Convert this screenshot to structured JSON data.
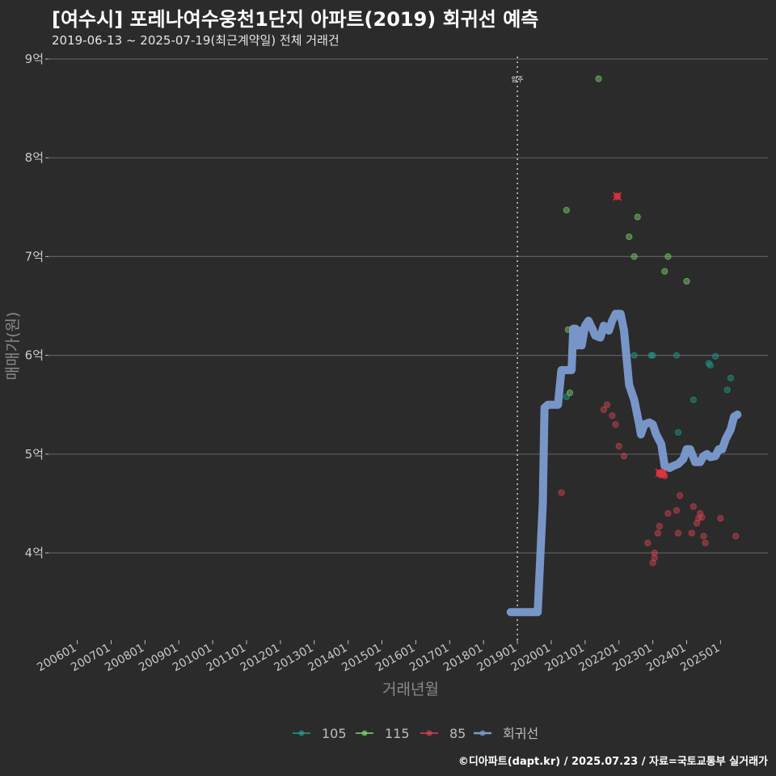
{
  "header": {
    "title": "[여수시] 포레나여수웅천1단지 아파트(2019) 회귀선 예측",
    "subtitle": "2019-06-13 ~ 2025-07-19(최근계약일) 전체 거래건"
  },
  "footer": {
    "credit": "©디아파트(dapt.kr) / 2025.07.23 / 자료=국토교통부 실거래가"
  },
  "chart_data": {
    "type": "scatter",
    "title": "[여수시] 포레나여수웅천1단지 아파트(2019) 회귀선 예측",
    "xlabel": "거래년월",
    "ylabel": "매매가(원)",
    "x_unit": "decimal year",
    "ylim": [
      3.15,
      9.0
    ],
    "y_ticks": [
      4,
      5,
      6,
      7,
      8,
      9
    ],
    "y_tick_labels": [
      "4억",
      "5억",
      "6억",
      "7억",
      "8억",
      "9억"
    ],
    "x_ticks": [
      2006,
      2007,
      2008,
      2009,
      2010,
      2011,
      2012,
      2013,
      2014,
      2015,
      2016,
      2017,
      2018,
      2019,
      2020,
      2021,
      2022,
      2023,
      2024,
      2025
    ],
    "x_tick_labels": [
      "200601",
      "200701",
      "200801",
      "200901",
      "201001",
      "201101",
      "201201",
      "201301",
      "201401",
      "201501",
      "201601",
      "201701",
      "201801",
      "201901",
      "202001",
      "202101",
      "202201",
      "202301",
      "202401",
      "202501"
    ],
    "xlim": [
      2005.15,
      2026.4
    ],
    "annotation": {
      "x": 2019.0,
      "label": "입주"
    },
    "legend": [
      {
        "name": "105",
        "color": "#1f9e89"
      },
      {
        "name": "115",
        "color": "#7fd36e"
      },
      {
        "name": "85",
        "color": "#d6454f"
      },
      {
        "name": "회귀선",
        "color": "#7b9bd0"
      }
    ],
    "series": [
      {
        "name": "105",
        "color": "#1f9e89",
        "points": [
          [
            2020.45,
            5.58
          ],
          [
            2022.45,
            6.0
          ],
          [
            2022.95,
            6.0
          ],
          [
            2023.0,
            6.0
          ],
          [
            2023.7,
            6.0
          ],
          [
            2023.75,
            5.22
          ],
          [
            2024.2,
            5.55
          ],
          [
            2024.65,
            5.92
          ],
          [
            2024.7,
            5.9
          ],
          [
            2024.85,
            5.99
          ],
          [
            2025.2,
            5.65
          ],
          [
            2025.3,
            5.77
          ]
        ]
      },
      {
        "name": "115",
        "color": "#7fd36e",
        "points": [
          [
            2020.45,
            7.47
          ],
          [
            2020.5,
            6.26
          ],
          [
            2020.55,
            5.62
          ],
          [
            2021.4,
            8.8
          ],
          [
            2022.3,
            7.2
          ],
          [
            2022.45,
            7.0
          ],
          [
            2022.55,
            7.4
          ],
          [
            2023.35,
            6.85
          ],
          [
            2023.45,
            7.0
          ],
          [
            2024.0,
            6.75
          ]
        ]
      },
      {
        "name": "85",
        "color": "#d6454f",
        "points": [
          [
            2020.3,
            4.61
          ],
          [
            2021.55,
            5.45
          ],
          [
            2021.65,
            5.5
          ],
          [
            2021.8,
            5.39
          ],
          [
            2021.9,
            5.3
          ],
          [
            2022.0,
            5.08
          ],
          [
            2022.15,
            4.98
          ],
          [
            2022.85,
            4.1
          ],
          [
            2023.0,
            3.9
          ],
          [
            2023.05,
            3.95
          ],
          [
            2023.05,
            4.0
          ],
          [
            2023.15,
            4.2
          ],
          [
            2023.2,
            4.27
          ],
          [
            2023.45,
            4.4
          ],
          [
            2023.7,
            4.43
          ],
          [
            2023.75,
            4.2
          ],
          [
            2023.8,
            4.58
          ],
          [
            2024.15,
            4.2
          ],
          [
            2024.2,
            4.47
          ],
          [
            2024.3,
            4.3
          ],
          [
            2024.35,
            4.35
          ],
          [
            2024.4,
            4.4
          ],
          [
            2024.45,
            4.36
          ],
          [
            2024.5,
            4.17
          ],
          [
            2024.55,
            4.1
          ],
          [
            2025.0,
            4.35
          ],
          [
            2025.45,
            4.17
          ],
          [
            2023.2,
            4.8
          ],
          [
            2023.25,
            4.79
          ],
          [
            2023.3,
            4.82
          ],
          [
            2023.35,
            4.78
          ]
        ]
      }
    ],
    "highlighted_points": [
      {
        "series": "85",
        "x": 2021.95,
        "y": 7.61
      },
      {
        "series": "85",
        "x": 2023.2,
        "y": 4.81
      },
      {
        "series": "85",
        "x": 2023.3,
        "y": 4.8
      }
    ],
    "regression_line": {
      "name": "회귀선",
      "points": [
        [
          2018.8,
          3.4
        ],
        [
          2019.5,
          3.4
        ],
        [
          2019.6,
          3.4
        ],
        [
          2019.75,
          4.5
        ],
        [
          2019.8,
          5.47
        ],
        [
          2019.9,
          5.5
        ],
        [
          2020.2,
          5.5
        ],
        [
          2020.3,
          5.85
        ],
        [
          2020.6,
          5.85
        ],
        [
          2020.65,
          6.27
        ],
        [
          2020.72,
          6.27
        ],
        [
          2020.78,
          6.1
        ],
        [
          2020.85,
          6.25
        ],
        [
          2020.9,
          6.1
        ],
        [
          2021.0,
          6.3
        ],
        [
          2021.1,
          6.35
        ],
        [
          2021.2,
          6.28
        ],
        [
          2021.3,
          6.2
        ],
        [
          2021.45,
          6.18
        ],
        [
          2021.55,
          6.3
        ],
        [
          2021.7,
          6.25
        ],
        [
          2021.8,
          6.35
        ],
        [
          2021.9,
          6.42
        ],
        [
          2022.05,
          6.42
        ],
        [
          2022.15,
          6.25
        ],
        [
          2022.3,
          5.7
        ],
        [
          2022.45,
          5.55
        ],
        [
          2022.6,
          5.3
        ],
        [
          2022.65,
          5.2
        ],
        [
          2022.75,
          5.3
        ],
        [
          2022.9,
          5.32
        ],
        [
          2023.0,
          5.3
        ],
        [
          2023.1,
          5.2
        ],
        [
          2023.25,
          5.1
        ],
        [
          2023.35,
          4.88
        ],
        [
          2023.5,
          4.86
        ],
        [
          2023.6,
          4.88
        ],
        [
          2023.75,
          4.9
        ],
        [
          2023.9,
          4.95
        ],
        [
          2024.0,
          5.05
        ],
        [
          2024.1,
          5.05
        ],
        [
          2024.25,
          4.92
        ],
        [
          2024.4,
          4.92
        ],
        [
          2024.5,
          4.98
        ],
        [
          2024.6,
          5.0
        ],
        [
          2024.7,
          4.97
        ],
        [
          2024.85,
          4.98
        ],
        [
          2024.95,
          5.05
        ],
        [
          2025.05,
          5.05
        ],
        [
          2025.15,
          5.15
        ],
        [
          2025.3,
          5.25
        ],
        [
          2025.4,
          5.38
        ],
        [
          2025.5,
          5.4
        ]
      ]
    }
  }
}
